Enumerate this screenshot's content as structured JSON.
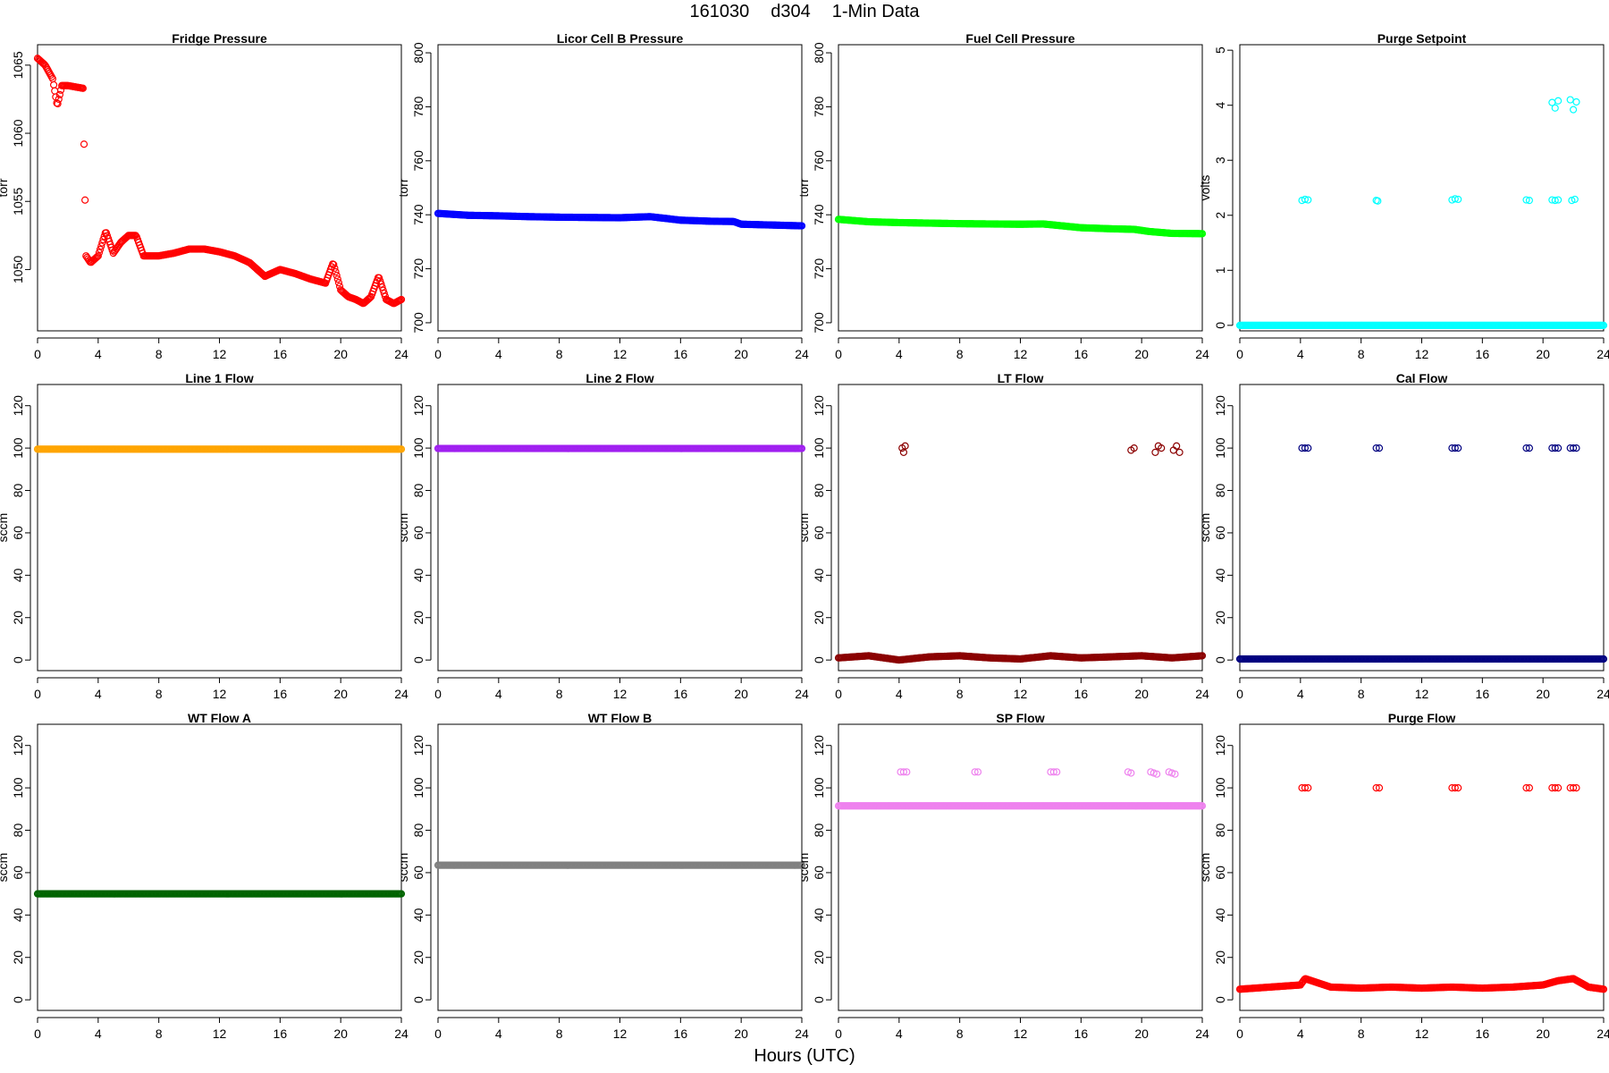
{
  "figure": {
    "title_parts": [
      "161030",
      "d304",
      "1-Min Data"
    ],
    "xlabel": "Hours (UTC)"
  },
  "chart_data": [
    {
      "type": "scatter",
      "title": "Fridge Pressure",
      "xlabel": "",
      "ylabel": "torr",
      "xlim": [
        0,
        24
      ],
      "ylim": [
        1045.5,
        1066.5
      ],
      "xticks": [
        0,
        4,
        8,
        12,
        16,
        20,
        24
      ],
      "yticks": [
        1050,
        1055,
        1060,
        1065
      ],
      "grid": false,
      "legend": "none",
      "series": [
        {
          "color": "#ff0000",
          "marker": "open-circle",
          "x": [
            0,
            0.5,
            1,
            1.3,
            1.6,
            2,
            2.5,
            3,
            3.2,
            3.5,
            4,
            4.5,
            5,
            5.5,
            6,
            6.5,
            7,
            8,
            9,
            10,
            11,
            12,
            13,
            14,
            15,
            16,
            17,
            18,
            19,
            19.5,
            20,
            20.5,
            21,
            21.5,
            22,
            22.5,
            23,
            23.5,
            24
          ],
          "y": [
            1065.5,
            1065,
            1064,
            1062,
            1063.5,
            1063.5,
            1063.4,
            1063.3,
            1051,
            1050.5,
            1051,
            1052.8,
            1051.2,
            1052,
            1052.5,
            1052.5,
            1051,
            1051,
            1051.2,
            1051.5,
            1051.5,
            1051.3,
            1051,
            1050.5,
            1049.5,
            1050,
            1049.7,
            1049.3,
            1049,
            1050.5,
            1048.5,
            1048,
            1047.8,
            1047.5,
            1048,
            1049.5,
            1047.8,
            1047.5,
            1047.8
          ]
        }
      ]
    },
    {
      "type": "scatter",
      "title": "Licor Cell B Pressure",
      "xlabel": "",
      "ylabel": "torr",
      "xlim": [
        0,
        24
      ],
      "ylim": [
        697,
        803
      ],
      "xticks": [
        0,
        4,
        8,
        12,
        16,
        20,
        24
      ],
      "yticks": [
        700,
        720,
        740,
        760,
        780,
        800
      ],
      "grid": false,
      "legend": "none",
      "series": [
        {
          "color": "#0000ff",
          "marker": "open-circle",
          "x": [
            0,
            2,
            4,
            6,
            8,
            10,
            12,
            14,
            16,
            18,
            19.5,
            20,
            22,
            24
          ],
          "y": [
            740.5,
            739.8,
            739.6,
            739.3,
            739.1,
            739,
            738.9,
            739.3,
            738,
            737.6,
            737.5,
            736.5,
            736.2,
            735.9
          ]
        }
      ]
    },
    {
      "type": "scatter",
      "title": "Fuel Cell Pressure",
      "xlabel": "",
      "ylabel": "torr",
      "xlim": [
        0,
        24
      ],
      "ylim": [
        697,
        803
      ],
      "xticks": [
        0,
        4,
        8,
        12,
        16,
        20,
        24
      ],
      "yticks": [
        700,
        720,
        740,
        760,
        780,
        800
      ],
      "grid": false,
      "legend": "none",
      "series": [
        {
          "color": "#00ff00",
          "marker": "open-circle",
          "x": [
            0,
            2,
            4,
            6,
            8,
            10,
            12,
            13.5,
            16,
            18,
            19.5,
            20.5,
            22,
            24
          ],
          "y": [
            738.3,
            737.4,
            737.1,
            736.9,
            736.7,
            736.6,
            736.5,
            736.6,
            735.2,
            734.8,
            734.6,
            733.8,
            733.1,
            733
          ]
        }
      ]
    },
    {
      "type": "scatter",
      "title": "Purge Setpoint",
      "xlabel": "",
      "ylabel": "volts",
      "xlim": [
        0,
        24
      ],
      "ylim": [
        -0.1,
        5.1
      ],
      "xticks": [
        0,
        4,
        8,
        12,
        16,
        20,
        24
      ],
      "yticks": [
        0,
        1,
        2,
        3,
        4,
        5
      ],
      "grid": false,
      "legend": "none",
      "series": [
        {
          "color": "#00ffff",
          "marker": "open-circle",
          "x": [
            0,
            4,
            8,
            12,
            16,
            20,
            24
          ],
          "y": [
            0,
            0,
            0,
            0,
            0,
            0,
            0
          ]
        },
        {
          "color": "#00ffff",
          "marker": "open-circle",
          "x": [
            4.1,
            4.3,
            4.5,
            9,
            9.1,
            14,
            14.2,
            14.4,
            18.9,
            19.1,
            20.6,
            20.8,
            21,
            21.9,
            22.1,
            20.6,
            20.8,
            21,
            21.8,
            22,
            22.2
          ],
          "y": [
            2.27,
            2.29,
            2.28,
            2.27,
            2.26,
            2.28,
            2.3,
            2.29,
            2.28,
            2.27,
            2.28,
            2.27,
            2.28,
            2.27,
            2.29,
            4.05,
            3.95,
            4.08,
            4.1,
            3.92,
            4.06
          ]
        }
      ]
    },
    {
      "type": "scatter",
      "title": "Line 1 Flow",
      "xlabel": "",
      "ylabel": "sccm",
      "xlim": [
        0,
        24
      ],
      "ylim": [
        -5,
        130
      ],
      "xticks": [
        0,
        4,
        8,
        12,
        16,
        20,
        24
      ],
      "yticks": [
        0,
        20,
        40,
        60,
        80,
        100,
        120
      ],
      "grid": false,
      "legend": "none",
      "series": [
        {
          "color": "#ffa500",
          "marker": "open-circle",
          "x": [
            0,
            4,
            8,
            12,
            16,
            20,
            24
          ],
          "y": [
            99.5,
            99.5,
            99.5,
            99.5,
            99.5,
            99.5,
            99.5
          ]
        }
      ]
    },
    {
      "type": "scatter",
      "title": "Line 2 Flow",
      "xlabel": "",
      "ylabel": "sccm",
      "xlim": [
        0,
        24
      ],
      "ylim": [
        -5,
        130
      ],
      "xticks": [
        0,
        4,
        8,
        12,
        16,
        20,
        24
      ],
      "yticks": [
        0,
        20,
        40,
        60,
        80,
        100,
        120
      ],
      "grid": false,
      "legend": "none",
      "series": [
        {
          "color": "#a020f0",
          "marker": "open-circle",
          "x": [
            0,
            4,
            8,
            12,
            16,
            20,
            24
          ],
          "y": [
            99.8,
            99.8,
            99.8,
            99.8,
            99.8,
            99.8,
            99.8
          ]
        }
      ]
    },
    {
      "type": "scatter",
      "title": "LT Flow",
      "xlabel": "",
      "ylabel": "sccm",
      "xlim": [
        0,
        24
      ],
      "ylim": [
        -5,
        130
      ],
      "xticks": [
        0,
        4,
        8,
        12,
        16,
        20,
        24
      ],
      "yticks": [
        0,
        20,
        40,
        60,
        80,
        100,
        120
      ],
      "grid": false,
      "legend": "none",
      "series": [
        {
          "color": "#8b0000",
          "marker": "open-circle",
          "x": [
            0,
            2,
            4,
            6,
            8,
            10,
            12,
            14,
            16,
            18,
            20,
            22,
            24
          ],
          "y": [
            1,
            2,
            0,
            1.5,
            2,
            1,
            0.5,
            2,
            1,
            1.5,
            2,
            1,
            2
          ]
        },
        {
          "color": "#8b0000",
          "marker": "open-circle",
          "x": [
            4.2,
            4.3,
            4.4,
            19.3,
            19.5,
            20.9,
            21.1,
            21.3,
            22.1,
            22.3,
            22.5
          ],
          "y": [
            100,
            98,
            101,
            99,
            100,
            98,
            101,
            100,
            99,
            101,
            98
          ]
        }
      ]
    },
    {
      "type": "scatter",
      "title": "Cal Flow",
      "xlabel": "",
      "ylabel": "sccm",
      "xlim": [
        0,
        24
      ],
      "ylim": [
        -5,
        130
      ],
      "xticks": [
        0,
        4,
        8,
        12,
        16,
        20,
        24
      ],
      "yticks": [
        0,
        20,
        40,
        60,
        80,
        100,
        120
      ],
      "grid": false,
      "legend": "none",
      "series": [
        {
          "color": "#000080",
          "marker": "open-circle",
          "x": [
            0,
            4,
            8,
            12,
            16,
            20,
            24
          ],
          "y": [
            0.5,
            0.5,
            0.5,
            0.5,
            0.5,
            0.5,
            0.5
          ]
        },
        {
          "color": "#000080",
          "marker": "open-circle",
          "x": [
            4.1,
            4.3,
            4.5,
            9,
            9.2,
            14,
            14.2,
            14.4,
            18.9,
            19.1,
            20.6,
            20.8,
            21,
            21.8,
            22,
            22.2
          ],
          "y": [
            100,
            100,
            100,
            100,
            100,
            100,
            100,
            100,
            100,
            100,
            100,
            100,
            100,
            100,
            100,
            100
          ]
        }
      ]
    },
    {
      "type": "scatter",
      "title": "WT Flow A",
      "xlabel": "",
      "ylabel": "sccm",
      "xlim": [
        0,
        24
      ],
      "ylim": [
        -5,
        130
      ],
      "xticks": [
        0,
        4,
        8,
        12,
        16,
        20,
        24
      ],
      "yticks": [
        0,
        20,
        40,
        60,
        80,
        100,
        120
      ],
      "grid": false,
      "legend": "none",
      "series": [
        {
          "color": "#006400",
          "marker": "open-circle",
          "x": [
            0,
            4,
            8,
            12,
            16,
            20,
            24
          ],
          "y": [
            50,
            50,
            50,
            50,
            50,
            50,
            50
          ]
        }
      ]
    },
    {
      "type": "scatter",
      "title": "WT Flow B",
      "xlabel": "",
      "ylabel": "sccm",
      "xlim": [
        0,
        24
      ],
      "ylim": [
        -5,
        130
      ],
      "xticks": [
        0,
        4,
        8,
        12,
        16,
        20,
        24
      ],
      "yticks": [
        0,
        20,
        40,
        60,
        80,
        100,
        120
      ],
      "grid": false,
      "legend": "none",
      "series": [
        {
          "color": "#808080",
          "marker": "open-circle",
          "x": [
            0,
            4,
            8,
            12,
            16,
            20,
            24
          ],
          "y": [
            63.5,
            63.5,
            63.5,
            63.5,
            63.5,
            63.5,
            63.5
          ]
        }
      ]
    },
    {
      "type": "scatter",
      "title": "SP Flow",
      "xlabel": "",
      "ylabel": "sccm",
      "xlim": [
        0,
        24
      ],
      "ylim": [
        -5,
        130
      ],
      "xticks": [
        0,
        4,
        8,
        12,
        16,
        20,
        24
      ],
      "yticks": [
        0,
        20,
        40,
        60,
        80,
        100,
        120
      ],
      "grid": false,
      "legend": "none",
      "series": [
        {
          "color": "#ee82ee",
          "marker": "open-circle",
          "x": [
            0,
            4,
            8,
            12,
            16,
            20,
            24
          ],
          "y": [
            91.5,
            91.5,
            91.5,
            91.5,
            91.5,
            91.5,
            91.5
          ]
        },
        {
          "color": "#ee82ee",
          "marker": "open-circle",
          "x": [
            4.1,
            4.3,
            4.5,
            9,
            9.2,
            14,
            14.2,
            14.4,
            19.1,
            19.3,
            20.6,
            20.8,
            21,
            21.8,
            22,
            22.2
          ],
          "y": [
            107.5,
            107.5,
            107.5,
            107.5,
            107.5,
            107.5,
            107.5,
            107.5,
            107.5,
            107,
            107.5,
            107,
            106.5,
            107.5,
            107,
            106.5
          ]
        }
      ]
    },
    {
      "type": "scatter",
      "title": "Purge Flow",
      "xlabel": "",
      "ylabel": "sccm",
      "xlim": [
        0,
        24
      ],
      "ylim": [
        -5,
        130
      ],
      "xticks": [
        0,
        4,
        8,
        12,
        16,
        20,
        24
      ],
      "yticks": [
        0,
        20,
        40,
        60,
        80,
        100,
        120
      ],
      "grid": false,
      "legend": "none",
      "series": [
        {
          "color": "#ff0000",
          "marker": "open-circle",
          "x": [
            0,
            2,
            4,
            4.3,
            6,
            8,
            10,
            12,
            14,
            16,
            18,
            20,
            21,
            22,
            23,
            24
          ],
          "y": [
            5,
            6,
            7,
            10,
            6,
            5.5,
            6,
            5.5,
            6,
            5.5,
            6,
            7,
            9,
            10,
            6,
            5
          ]
        },
        {
          "color": "#ff0000",
          "marker": "open-circle",
          "x": [
            4.1,
            4.3,
            4.5,
            9,
            9.2,
            14,
            14.2,
            14.4,
            18.9,
            19.1,
            20.6,
            20.8,
            21,
            21.8,
            22,
            22.2
          ],
          "y": [
            100,
            100,
            100,
            100,
            100,
            100,
            100,
            100,
            100,
            100,
            100,
            100,
            100,
            100,
            100,
            100
          ]
        }
      ]
    }
  ]
}
